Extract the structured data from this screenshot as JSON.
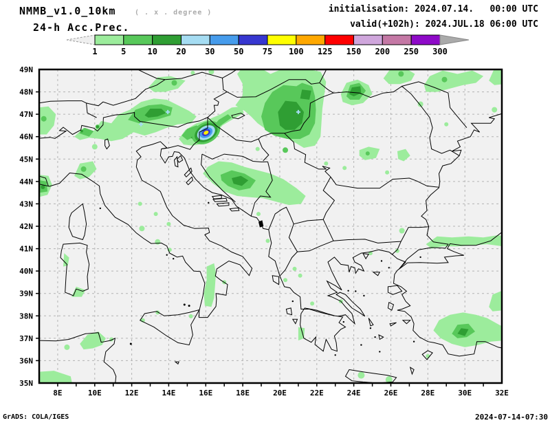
{
  "header": {
    "model_title": "NMMB_v1.0_10km",
    "degree_note": "( . x . degree )",
    "product": "24-h Acc.Prec.",
    "init_line": "initialisation: 2024.07.14.   00:00 UTC",
    "valid_line": "valid(+102h): 2024.JUL.18 06:00 UTC"
  },
  "colorbar": {
    "tick_labels": [
      "1",
      "5",
      "10",
      "20",
      "30",
      "50",
      "75",
      "100",
      "125",
      "150",
      "200",
      "250",
      "300"
    ],
    "segment_colors": [
      "#9cec9c",
      "#58c85a",
      "#2f9e33",
      "#a5dcf2",
      "#469cec",
      "#3737d0",
      "#ffff00",
      "#ffa800",
      "#ff0000",
      "#cfa6dc",
      "#c478a5",
      "#8e0ac8"
    ],
    "left_arrow_fill": "#efefef",
    "right_arrow_fill": "#aaaaaa"
  },
  "map": {
    "background": "#f1f1f1",
    "grid_color": "#b3b3b3",
    "lat_tick_labels": [
      "49N",
      "48N",
      "47N",
      "46N",
      "45N",
      "44N",
      "43N",
      "42N",
      "41N",
      "40N",
      "39N",
      "38N",
      "37N",
      "36N",
      "35N"
    ],
    "lon_tick_labels": [
      "8E",
      "10E",
      "12E",
      "14E",
      "16E",
      "18E",
      "20E",
      "22E",
      "24E",
      "26E",
      "28E",
      "30E",
      "32E"
    ],
    "storm_core_color": "#ffeb00"
  },
  "footer": {
    "left": "GrADS: COLA/IGES",
    "right": "2024-07-14-07:30"
  }
}
